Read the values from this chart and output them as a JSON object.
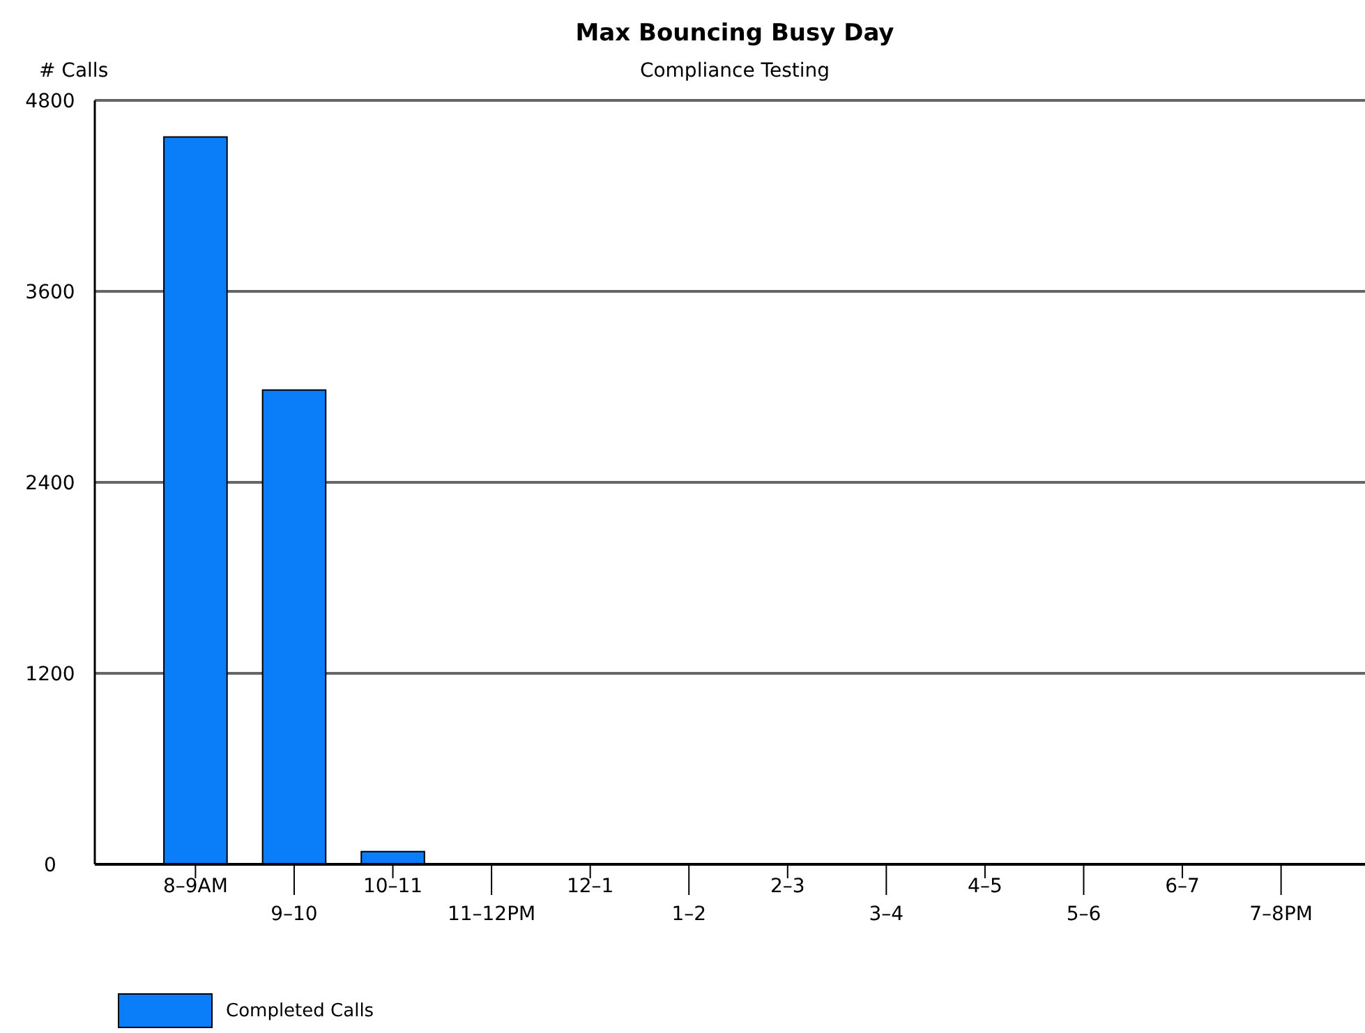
{
  "chart_data": {
    "type": "bar",
    "title": "Max Bouncing Busy Day",
    "subtitle": "Compliance Testing",
    "ylabel": "# Calls",
    "categories": [
      "8–9AM",
      "9–10",
      "10–11",
      "11–12PM",
      "12–1",
      "1–2",
      "2–3",
      "3–4",
      "4–5",
      "5–6",
      "6–7",
      "7–8PM"
    ],
    "series": [
      {
        "name": "Completed Calls",
        "color": "#0a7ef8",
        "values": [
          4570,
          2980,
          80,
          0,
          0,
          0,
          0,
          0,
          0,
          0,
          0,
          0
        ]
      }
    ],
    "ylim": [
      0,
      4800
    ],
    "yticks": [
      0,
      1200,
      2400,
      3600,
      4800
    ],
    "grid": "y",
    "legend": "bottom left"
  }
}
